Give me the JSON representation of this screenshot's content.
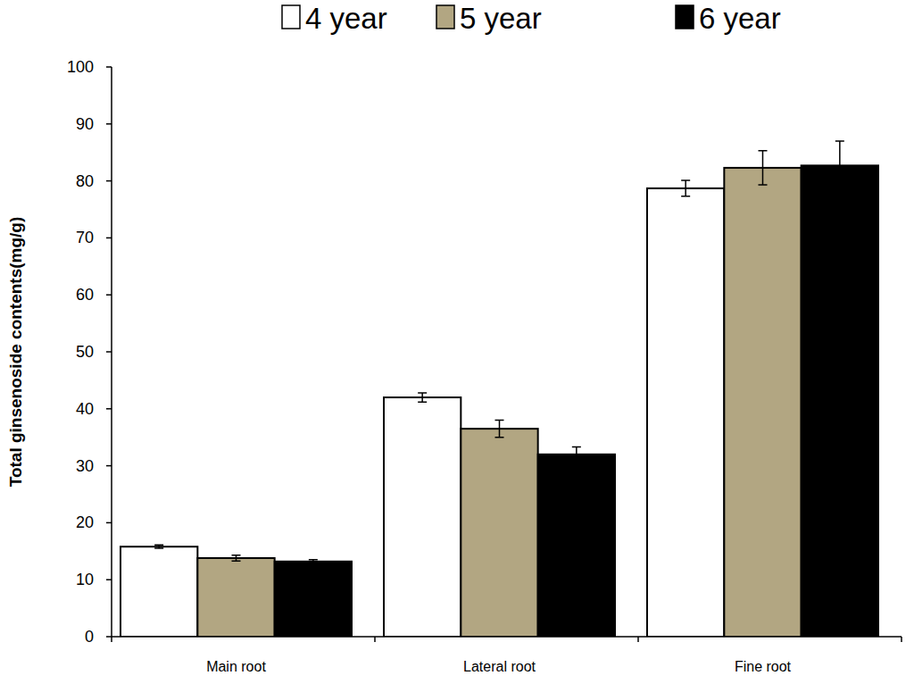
{
  "chart_data": {
    "type": "bar",
    "y_label": "Total ginsenoside contents(mg/g)",
    "categories": [
      "Main root",
      "Lateral root",
      "Fine root"
    ],
    "series": [
      {
        "name": "4 year",
        "color": "#ffffff",
        "values": [
          15.8,
          42.0,
          78.7
        ],
        "errors": [
          0.3,
          0.8,
          1.4
        ]
      },
      {
        "name": "5 year",
        "color": "#b2a682",
        "values": [
          13.8,
          36.5,
          82.3
        ],
        "errors": [
          0.5,
          1.5,
          3.0
        ]
      },
      {
        "name": "6 year",
        "color": "#000000",
        "values": [
          13.2,
          32.0,
          82.7
        ],
        "errors": [
          0.3,
          1.3,
          4.3
        ]
      }
    ],
    "ylim": [
      0,
      100
    ],
    "yticks": [
      0,
      10,
      20,
      30,
      40,
      50,
      60,
      70,
      80,
      90,
      100
    ],
    "grid": false,
    "legend": "top"
  }
}
